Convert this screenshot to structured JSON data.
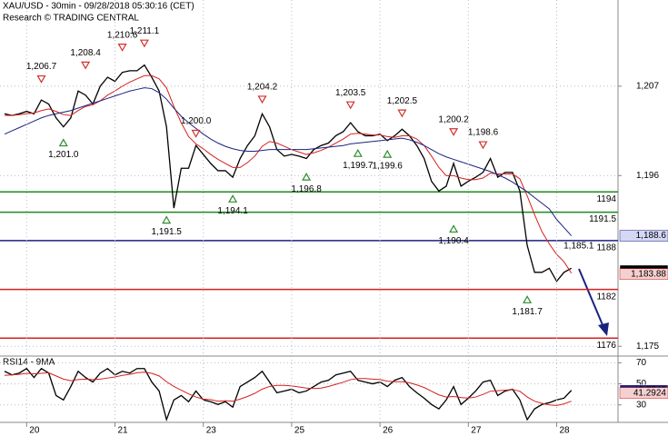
{
  "chart_data": [
    {
      "type": "line",
      "title": "XAU/USD - 30min - 09/28/2018 05:30:16 (CET)",
      "subtitle": "Research © TRADING CENTRAL",
      "ylim": [
        1173.8,
        1217.6
      ],
      "yticks": [
        {
          "value": 1207,
          "label": "1,207"
        },
        {
          "value": 1196,
          "label": "1,196"
        },
        {
          "value": 1175,
          "label": "1,175"
        }
      ],
      "grid": true,
      "series": [
        {
          "color": "#000000",
          "values": [
            1203.6,
            1203.4,
            1203.6,
            1203.9,
            1203.6,
            1205.3,
            1204.8,
            1203.1,
            1202.0,
            1203.1,
            1206.4,
            1205.9,
            1204.8,
            1207.0,
            1208.1,
            1207.6,
            1208.7,
            1208.9,
            1208.9,
            1209.6,
            1208.1,
            1206.4,
            1202.0,
            1192.0,
            1196.9,
            1196.9,
            1199.7,
            1198.6,
            1197.5,
            1196.6,
            1196.6,
            1195.8,
            1198.1,
            1199.7,
            1200.9,
            1203.6,
            1202.0,
            1199.2,
            1198.4,
            1198.6,
            1198.4,
            1198.1,
            1199.2,
            1199.7,
            1200.0,
            1200.9,
            1201.4,
            1202.5,
            1201.4,
            1200.9,
            1200.9,
            1201.1,
            1200.3,
            1200.9,
            1201.7,
            1200.9,
            1199.7,
            1198.1,
            1195.3,
            1194.1,
            1194.7,
            1197.5,
            1194.7,
            1195.3,
            1195.8,
            1196.4,
            1198.1,
            1195.8,
            1196.4,
            1196.4,
            1194.1,
            1187.4,
            1184.1,
            1184.1,
            1184.6,
            1183.0,
            1184.1,
            1184.6
          ]
        },
        {
          "color": "#d62020",
          "values": [
            1203.4,
            1203.4,
            1203.5,
            1203.6,
            1203.7,
            1204.0,
            1204.2,
            1203.9,
            1203.5,
            1203.4,
            1204.0,
            1204.5,
            1204.7,
            1205.2,
            1205.9,
            1206.4,
            1207.0,
            1207.5,
            1207.9,
            1208.3,
            1208.3,
            1207.9,
            1206.8,
            1204.5,
            1202.5,
            1200.8,
            1199.9,
            1199.3,
            1198.6,
            1198.0,
            1197.5,
            1197.0,
            1197.0,
            1197.6,
            1198.4,
            1199.6,
            1200.2,
            1200.0,
            1199.6,
            1199.2,
            1198.9,
            1198.6,
            1198.8,
            1199.1,
            1199.5,
            1200.0,
            1200.5,
            1201.1,
            1201.2,
            1201.1,
            1201.0,
            1201.0,
            1200.8,
            1200.7,
            1200.9,
            1200.9,
            1200.5,
            1199.7,
            1198.4,
            1197.0,
            1196.0,
            1196.0,
            1195.7,
            1195.5,
            1195.5,
            1195.7,
            1196.3,
            1196.2,
            1196.2,
            1196.2,
            1195.6,
            1193.5,
            1191.2,
            1189.1,
            1187.6,
            1186.3,
            1185.4,
            1184.0
          ]
        },
        {
          "color": "#1a237e",
          "values": [
            1201.1,
            1201.5,
            1201.9,
            1202.3,
            1202.7,
            1203.1,
            1203.4,
            1203.6,
            1203.8,
            1204.0,
            1204.3,
            1204.6,
            1204.9,
            1205.2,
            1205.5,
            1205.8,
            1206.1,
            1206.4,
            1206.6,
            1206.8,
            1206.7,
            1206.2,
            1205.4,
            1204.3,
            1203.3,
            1202.5,
            1201.8,
            1201.1,
            1200.5,
            1200.0,
            1199.6,
            1199.3,
            1199.1,
            1199.0,
            1199.0,
            1199.1,
            1199.2,
            1199.2,
            1199.2,
            1199.2,
            1199.2,
            1199.2,
            1199.3,
            1199.4,
            1199.5,
            1199.6,
            1199.7,
            1199.9,
            1200.0,
            1200.1,
            1200.2,
            1200.3,
            1200.4,
            1200.5,
            1200.6,
            1200.4,
            1200.1,
            1199.7,
            1199.2,
            1198.7,
            1198.3,
            1198.0,
            1197.7,
            1197.4,
            1197.1,
            1196.8,
            1196.5,
            1196.1,
            1195.7,
            1195.2,
            1194.6,
            1194.0,
            1193.3,
            1192.6,
            1191.9,
            1190.6,
            1189.6,
            1188.6
          ]
        }
      ],
      "levels": [
        {
          "value": 1194,
          "color": "#1f8a1f"
        },
        {
          "value": 1191.5,
          "color": "#1f8a1f"
        },
        {
          "value": 1188,
          "color": "#1a237e"
        },
        {
          "value": 1182,
          "color": "#d62020"
        },
        {
          "value": 1176,
          "color": "#d62020"
        }
      ],
      "marker_colors": {
        "down": "#d0312d",
        "up": "#2e8b2e",
        "none": "#000000"
      },
      "annotations": [
        {
          "label": "1,206.7",
          "value": 1206.7,
          "index": 5,
          "marker": "down"
        },
        {
          "label": "1,201.0",
          "value": 1201.0,
          "index": 8,
          "marker": "up"
        },
        {
          "label": "1,208.4",
          "value": 1208.4,
          "index": 11,
          "marker": "down"
        },
        {
          "label": "1,210.6",
          "value": 1210.6,
          "index": 16,
          "marker": "down"
        },
        {
          "label": "1,211.1",
          "value": 1211.1,
          "index": 19,
          "marker": "down"
        },
        {
          "label": "1,191.5",
          "value": 1191.5,
          "index": 22,
          "marker": "up"
        },
        {
          "label": "1,200.0",
          "value": 1200.0,
          "index": 26,
          "marker": "down"
        },
        {
          "label": "1,194.1",
          "value": 1194.1,
          "index": 31,
          "marker": "up"
        },
        {
          "label": "1,204.2",
          "value": 1204.2,
          "index": 35,
          "marker": "down"
        },
        {
          "label": "1,196.8",
          "value": 1196.8,
          "index": 41,
          "marker": "up"
        },
        {
          "label": "1,203.5",
          "value": 1203.5,
          "index": 47,
          "marker": "down"
        },
        {
          "label": "1,199.7",
          "value": 1199.7,
          "index": 48,
          "marker": "up"
        },
        {
          "label": "1,199.6",
          "value": 1199.6,
          "index": 52,
          "marker": "up"
        },
        {
          "label": "1,202.5",
          "value": 1202.5,
          "index": 54,
          "marker": "down"
        },
        {
          "label": "1,200.2",
          "value": 1200.2,
          "index": 61,
          "marker": "down"
        },
        {
          "label": "1,190.4",
          "value": 1190.4,
          "index": 61,
          "marker": "up"
        },
        {
          "label": "1,198.6",
          "value": 1198.6,
          "index": 65,
          "marker": "down"
        },
        {
          "label": "1,181.7",
          "value": 1181.7,
          "index": 71,
          "marker": "up"
        },
        {
          "label": "1,185.1",
          "value": 1185.1,
          "index": 78,
          "marker": "none"
        }
      ],
      "price_tags": [
        {
          "value": 1188.6,
          "label": "1,188.6",
          "fill": "#d4d8f5",
          "text_color": "#1a237e"
        },
        {
          "value": 1184.31,
          "label": "1,184.31",
          "fill": "#000000",
          "text_color": "#ffffff"
        },
        {
          "value": 1183.88,
          "label": "1,183.88",
          "fill": "#f5d0d0",
          "text_color": "#d62020"
        }
      ]
    },
    {
      "type": "line",
      "title": "RSI14 - 9MA",
      "categories": [
        null,
        null,
        null,
        "20",
        null,
        null,
        null,
        null,
        null,
        null,
        null,
        null,
        null,
        null,
        null,
        "21",
        null,
        null,
        null,
        null,
        null,
        null,
        null,
        null,
        null,
        null,
        null,
        "23",
        null,
        null,
        null,
        null,
        null,
        null,
        null,
        null,
        null,
        null,
        null,
        "25",
        null,
        null,
        null,
        null,
        null,
        null,
        null,
        null,
        null,
        null,
        null,
        "26",
        null,
        null,
        null,
        null,
        null,
        null,
        null,
        null,
        null,
        null,
        null,
        "27",
        null,
        null,
        null,
        null,
        null,
        null,
        null,
        null,
        null,
        null,
        null,
        "28",
        null,
        null
      ],
      "ylim": [
        13.4,
        75.5
      ],
      "yticks": [
        70,
        50,
        30
      ],
      "grid": true,
      "series": [
        {
          "color": "#000000",
          "values": [
            61.9,
            58.5,
            60.2,
            64.5,
            56.0,
            64.5,
            60.2,
            38.9,
            34.7,
            47.4,
            61.9,
            56.0,
            51.7,
            60.2,
            64.5,
            58.5,
            61.9,
            60.2,
            64.5,
            64.5,
            51.7,
            43.2,
            16.0,
            34.7,
            38.9,
            33.0,
            43.2,
            34.7,
            33.0,
            30.4,
            33.0,
            27.9,
            47.4,
            51.7,
            56.0,
            61.9,
            51.7,
            41.5,
            43.2,
            44.9,
            41.5,
            43.2,
            47.4,
            51.7,
            53.4,
            58.5,
            60.2,
            61.9,
            53.4,
            51.7,
            50.0,
            51.7,
            47.4,
            53.4,
            56.0,
            47.4,
            41.5,
            36.4,
            30.4,
            26.2,
            34.7,
            47.4,
            30.4,
            36.4,
            43.2,
            51.7,
            53.4,
            38.9,
            43.2,
            44.9,
            34.7,
            16.0,
            26.2,
            30.4,
            32.1,
            34.7,
            36.4,
            43.8
          ]
        },
        {
          "color": "#d62020",
          "values": [
            58.0,
            58.5,
            59.0,
            60.0,
            59.5,
            60.0,
            60.5,
            57.5,
            54.5,
            53.0,
            54.0,
            54.5,
            54.0,
            54.5,
            55.5,
            56.5,
            58.0,
            59.0,
            60.5,
            61.0,
            60.0,
            57.5,
            52.0,
            47.5,
            44.0,
            40.5,
            37.5,
            35.5,
            35.0,
            33.5,
            34.0,
            33.5,
            35.5,
            38.0,
            41.0,
            45.0,
            47.5,
            48.5,
            48.5,
            48.0,
            47.0,
            46.0,
            45.5,
            46.0,
            47.5,
            49.5,
            51.5,
            54.0,
            55.0,
            55.0,
            54.5,
            54.0,
            52.5,
            52.0,
            52.0,
            51.0,
            49.0,
            46.5,
            43.0,
            39.5,
            37.5,
            38.0,
            37.0,
            36.5,
            37.5,
            40.0,
            43.0,
            43.5,
            44.0,
            44.5,
            43.0,
            37.5,
            33.5,
            31.5,
            30.0,
            29.5,
            31.0,
            33.5
          ]
        }
      ],
      "price_tags": [
        {
          "value": 43.7742,
          "label": "43.7742",
          "fill": "#1a237e",
          "text_color": "#ffffff"
        },
        {
          "value": 41.2924,
          "label": "41.2924",
          "fill": "#f5d0d0",
          "text_color": "#d62020"
        }
      ]
    }
  ]
}
